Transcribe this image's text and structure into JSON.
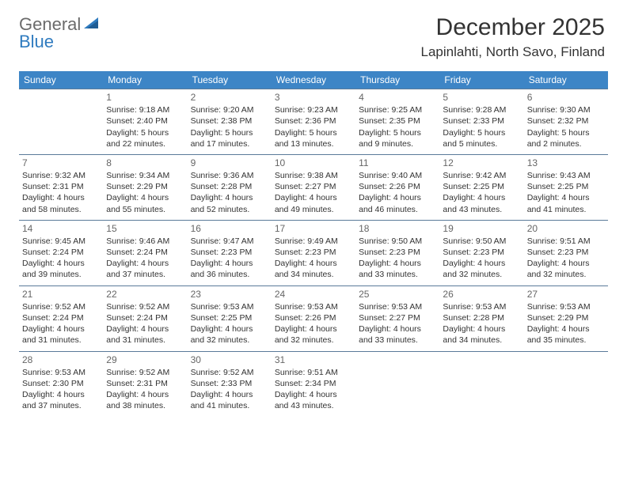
{
  "brand": {
    "part1": "General",
    "part2": "Blue"
  },
  "title": "December 2025",
  "location": "Lapinlahti, North Savo, Finland",
  "colors": {
    "header_bg": "#3d85c6",
    "header_text": "#ffffff",
    "row_border": "#5a7a99",
    "brand_gray": "#6b6b6b",
    "brand_blue": "#2f7bbf",
    "text": "#333333"
  },
  "weekdays": [
    "Sunday",
    "Monday",
    "Tuesday",
    "Wednesday",
    "Thursday",
    "Friday",
    "Saturday"
  ],
  "weeks": [
    [
      null,
      {
        "n": "1",
        "sr": "Sunrise: 9:18 AM",
        "ss": "Sunset: 2:40 PM",
        "d1": "Daylight: 5 hours",
        "d2": "and 22 minutes."
      },
      {
        "n": "2",
        "sr": "Sunrise: 9:20 AM",
        "ss": "Sunset: 2:38 PM",
        "d1": "Daylight: 5 hours",
        "d2": "and 17 minutes."
      },
      {
        "n": "3",
        "sr": "Sunrise: 9:23 AM",
        "ss": "Sunset: 2:36 PM",
        "d1": "Daylight: 5 hours",
        "d2": "and 13 minutes."
      },
      {
        "n": "4",
        "sr": "Sunrise: 9:25 AM",
        "ss": "Sunset: 2:35 PM",
        "d1": "Daylight: 5 hours",
        "d2": "and 9 minutes."
      },
      {
        "n": "5",
        "sr": "Sunrise: 9:28 AM",
        "ss": "Sunset: 2:33 PM",
        "d1": "Daylight: 5 hours",
        "d2": "and 5 minutes."
      },
      {
        "n": "6",
        "sr": "Sunrise: 9:30 AM",
        "ss": "Sunset: 2:32 PM",
        "d1": "Daylight: 5 hours",
        "d2": "and 2 minutes."
      }
    ],
    [
      {
        "n": "7",
        "sr": "Sunrise: 9:32 AM",
        "ss": "Sunset: 2:31 PM",
        "d1": "Daylight: 4 hours",
        "d2": "and 58 minutes."
      },
      {
        "n": "8",
        "sr": "Sunrise: 9:34 AM",
        "ss": "Sunset: 2:29 PM",
        "d1": "Daylight: 4 hours",
        "d2": "and 55 minutes."
      },
      {
        "n": "9",
        "sr": "Sunrise: 9:36 AM",
        "ss": "Sunset: 2:28 PM",
        "d1": "Daylight: 4 hours",
        "d2": "and 52 minutes."
      },
      {
        "n": "10",
        "sr": "Sunrise: 9:38 AM",
        "ss": "Sunset: 2:27 PM",
        "d1": "Daylight: 4 hours",
        "d2": "and 49 minutes."
      },
      {
        "n": "11",
        "sr": "Sunrise: 9:40 AM",
        "ss": "Sunset: 2:26 PM",
        "d1": "Daylight: 4 hours",
        "d2": "and 46 minutes."
      },
      {
        "n": "12",
        "sr": "Sunrise: 9:42 AM",
        "ss": "Sunset: 2:25 PM",
        "d1": "Daylight: 4 hours",
        "d2": "and 43 minutes."
      },
      {
        "n": "13",
        "sr": "Sunrise: 9:43 AM",
        "ss": "Sunset: 2:25 PM",
        "d1": "Daylight: 4 hours",
        "d2": "and 41 minutes."
      }
    ],
    [
      {
        "n": "14",
        "sr": "Sunrise: 9:45 AM",
        "ss": "Sunset: 2:24 PM",
        "d1": "Daylight: 4 hours",
        "d2": "and 39 minutes."
      },
      {
        "n": "15",
        "sr": "Sunrise: 9:46 AM",
        "ss": "Sunset: 2:24 PM",
        "d1": "Daylight: 4 hours",
        "d2": "and 37 minutes."
      },
      {
        "n": "16",
        "sr": "Sunrise: 9:47 AM",
        "ss": "Sunset: 2:23 PM",
        "d1": "Daylight: 4 hours",
        "d2": "and 36 minutes."
      },
      {
        "n": "17",
        "sr": "Sunrise: 9:49 AM",
        "ss": "Sunset: 2:23 PM",
        "d1": "Daylight: 4 hours",
        "d2": "and 34 minutes."
      },
      {
        "n": "18",
        "sr": "Sunrise: 9:50 AM",
        "ss": "Sunset: 2:23 PM",
        "d1": "Daylight: 4 hours",
        "d2": "and 33 minutes."
      },
      {
        "n": "19",
        "sr": "Sunrise: 9:50 AM",
        "ss": "Sunset: 2:23 PM",
        "d1": "Daylight: 4 hours",
        "d2": "and 32 minutes."
      },
      {
        "n": "20",
        "sr": "Sunrise: 9:51 AM",
        "ss": "Sunset: 2:23 PM",
        "d1": "Daylight: 4 hours",
        "d2": "and 32 minutes."
      }
    ],
    [
      {
        "n": "21",
        "sr": "Sunrise: 9:52 AM",
        "ss": "Sunset: 2:24 PM",
        "d1": "Daylight: 4 hours",
        "d2": "and 31 minutes."
      },
      {
        "n": "22",
        "sr": "Sunrise: 9:52 AM",
        "ss": "Sunset: 2:24 PM",
        "d1": "Daylight: 4 hours",
        "d2": "and 31 minutes."
      },
      {
        "n": "23",
        "sr": "Sunrise: 9:53 AM",
        "ss": "Sunset: 2:25 PM",
        "d1": "Daylight: 4 hours",
        "d2": "and 32 minutes."
      },
      {
        "n": "24",
        "sr": "Sunrise: 9:53 AM",
        "ss": "Sunset: 2:26 PM",
        "d1": "Daylight: 4 hours",
        "d2": "and 32 minutes."
      },
      {
        "n": "25",
        "sr": "Sunrise: 9:53 AM",
        "ss": "Sunset: 2:27 PM",
        "d1": "Daylight: 4 hours",
        "d2": "and 33 minutes."
      },
      {
        "n": "26",
        "sr": "Sunrise: 9:53 AM",
        "ss": "Sunset: 2:28 PM",
        "d1": "Daylight: 4 hours",
        "d2": "and 34 minutes."
      },
      {
        "n": "27",
        "sr": "Sunrise: 9:53 AM",
        "ss": "Sunset: 2:29 PM",
        "d1": "Daylight: 4 hours",
        "d2": "and 35 minutes."
      }
    ],
    [
      {
        "n": "28",
        "sr": "Sunrise: 9:53 AM",
        "ss": "Sunset: 2:30 PM",
        "d1": "Daylight: 4 hours",
        "d2": "and 37 minutes."
      },
      {
        "n": "29",
        "sr": "Sunrise: 9:52 AM",
        "ss": "Sunset: 2:31 PM",
        "d1": "Daylight: 4 hours",
        "d2": "and 38 minutes."
      },
      {
        "n": "30",
        "sr": "Sunrise: 9:52 AM",
        "ss": "Sunset: 2:33 PM",
        "d1": "Daylight: 4 hours",
        "d2": "and 41 minutes."
      },
      {
        "n": "31",
        "sr": "Sunrise: 9:51 AM",
        "ss": "Sunset: 2:34 PM",
        "d1": "Daylight: 4 hours",
        "d2": "and 43 minutes."
      },
      null,
      null,
      null
    ]
  ]
}
